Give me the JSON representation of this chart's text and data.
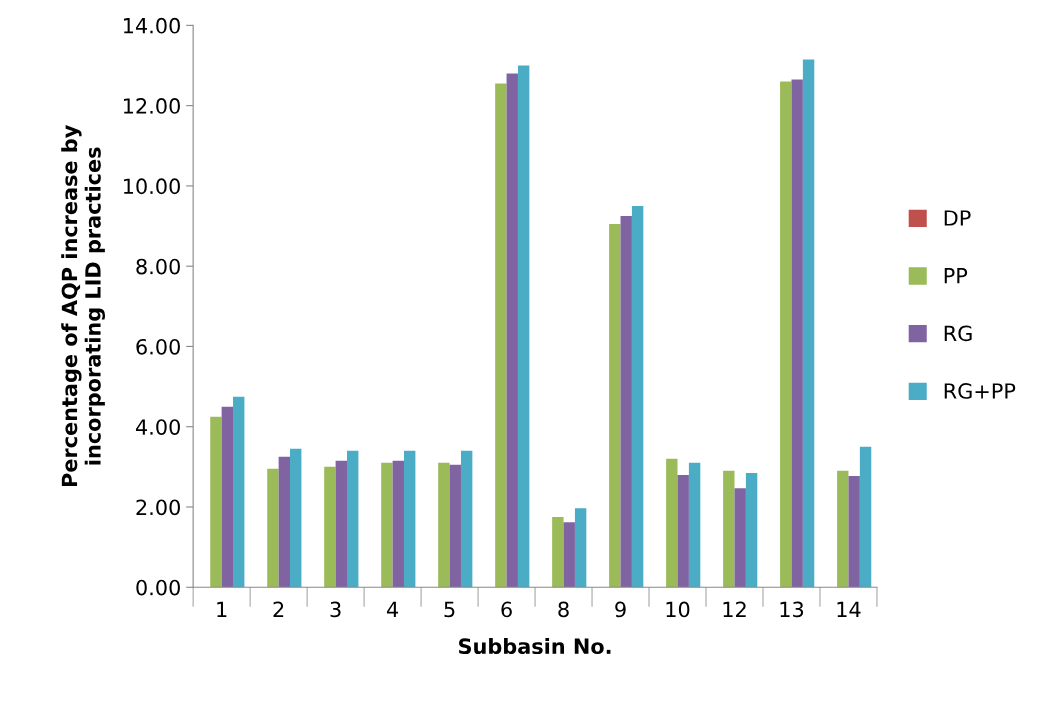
{
  "chart_data": {
    "type": "bar",
    "xlabel": "Subbasin No.",
    "ylabel": "Percentage of AQP increase by\nincorporating LID practices",
    "categories": [
      "1",
      "2",
      "3",
      "4",
      "5",
      "6",
      "8",
      "9",
      "10",
      "12",
      "13",
      "14"
    ],
    "series": [
      {
        "name": "DP",
        "color": "#c0504d",
        "values": [
          0,
          0,
          0,
          0,
          0,
          0,
          0,
          0,
          0,
          0,
          0,
          0
        ]
      },
      {
        "name": "PP",
        "color": "#9bbb59",
        "values": [
          4.25,
          2.95,
          3.0,
          3.1,
          3.1,
          12.55,
          1.75,
          9.05,
          3.2,
          2.9,
          12.6,
          2.9
        ]
      },
      {
        "name": "RG",
        "color": "#8064a2",
        "values": [
          4.5,
          3.25,
          3.15,
          3.15,
          3.05,
          12.8,
          1.62,
          9.25,
          2.8,
          2.47,
          12.65,
          2.77
        ]
      },
      {
        "name": "RG+PP",
        "color": "#4bacc6",
        "values": [
          4.75,
          3.45,
          3.4,
          3.4,
          3.4,
          13.0,
          1.97,
          9.5,
          3.1,
          2.85,
          13.15,
          3.5
        ]
      }
    ],
    "ylim": [
      0,
      14
    ],
    "yticks": [
      {
        "value": 0,
        "label": "0.00"
      },
      {
        "value": 2,
        "label": "2.00"
      },
      {
        "value": 4,
        "label": "4.00"
      },
      {
        "value": 6,
        "label": "6.00"
      },
      {
        "value": 8,
        "label": "8.00"
      },
      {
        "value": 10,
        "label": "10.00"
      },
      {
        "value": 12,
        "label": "12.00"
      },
      {
        "value": 14,
        "label": "14.00"
      }
    ],
    "grid": false,
    "legend": "right"
  }
}
